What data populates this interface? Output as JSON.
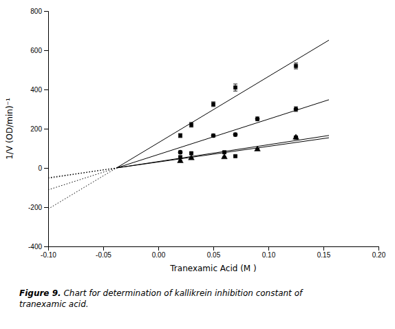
{
  "chart_data": {
    "type": "scatter",
    "xlabel": "Tranexamic Acid (M )",
    "ylabel": "1/V (OD/min)⁻¹",
    "caption_bold": "Figure 9.",
    "caption": " Chart for determination of kallikrein inhibition constant of\ntranexamic acid.",
    "xlim": [
      -0.1,
      0.2
    ],
    "ylim": [
      -400,
      800
    ],
    "xticks": [
      {
        "value": -0.1,
        "label": "-0.10"
      },
      {
        "value": -0.05,
        "label": "-0.05"
      },
      {
        "value": 0.0,
        "label": "0.00"
      },
      {
        "value": 0.05,
        "label": "0.05"
      },
      {
        "value": 0.1,
        "label": "0.10"
      },
      {
        "value": 0.15,
        "label": "0.15"
      },
      {
        "value": 0.2,
        "label": "0.20"
      }
    ],
    "yticks": [
      -400,
      -200,
      0,
      200,
      400,
      600,
      800
    ],
    "grid": false,
    "series": [
      {
        "marker": "square",
        "color": "black",
        "x": [
          0.02,
          0.03,
          0.05,
          0.07,
          0.125
        ],
        "values": [
          165,
          220,
          325,
          410,
          520
        ],
        "yerr": [
          10,
          12,
          12,
          18,
          15
        ],
        "lines": [
          {
            "line_style": "solid",
            "x": [
              -0.038,
              0.155
            ],
            "values": [
              0,
              651.511
            ]
          },
          {
            "line_style": "dotted",
            "x": [
              -0.1,
              -0.038
            ],
            "values": [
              -209.294,
              0
            ]
          }
        ]
      },
      {
        "marker": "circle",
        "color": "black",
        "x": [
          0.02,
          0.05,
          0.07,
          0.09,
          0.125
        ],
        "values": [
          80,
          165,
          170,
          250,
          300
        ],
        "yerr": [
          7,
          8,
          8,
          10,
          12
        ],
        "lines": [
          {
            "line_style": "solid",
            "x": [
              -0.038,
              0.155
            ],
            "values": [
              0,
              347.738
            ]
          },
          {
            "line_style": "dotted",
            "x": [
              -0.1,
              -0.038
            ],
            "values": [
              -111.708,
              0
            ]
          }
        ]
      },
      {
        "marker": "square",
        "color": "black",
        "x": [
          0.02,
          0.03,
          0.06,
          0.07,
          0.125
        ],
        "values": [
          55,
          75,
          80,
          60,
          155
        ],
        "yerr": [
          5,
          5,
          5,
          4,
          6
        ],
        "lines": [
          {
            "line_style": "solid",
            "x": [
              -0.038,
              0.155
            ],
            "values": [
              0,
              165.515
            ]
          },
          {
            "line_style": "dotted",
            "x": [
              -0.1,
              -0.038
            ],
            "values": [
              -53.171,
              0
            ]
          }
        ]
      },
      {
        "marker": "triangle",
        "color": "black",
        "x": [
          0.02,
          0.03,
          0.06,
          0.09,
          0.125
        ],
        "values": [
          35,
          50,
          55,
          95,
          155
        ],
        "yerr": [
          4,
          4,
          4,
          5,
          7
        ],
        "lines": [
          {
            "line_style": "solid",
            "x": [
              -0.038,
              0.155
            ],
            "values": [
              0,
              153.791
            ]
          },
          {
            "line_style": "dotted",
            "x": [
              -0.1,
              -0.038
            ],
            "values": [
              -49.404,
              0
            ]
          }
        ]
      }
    ]
  }
}
